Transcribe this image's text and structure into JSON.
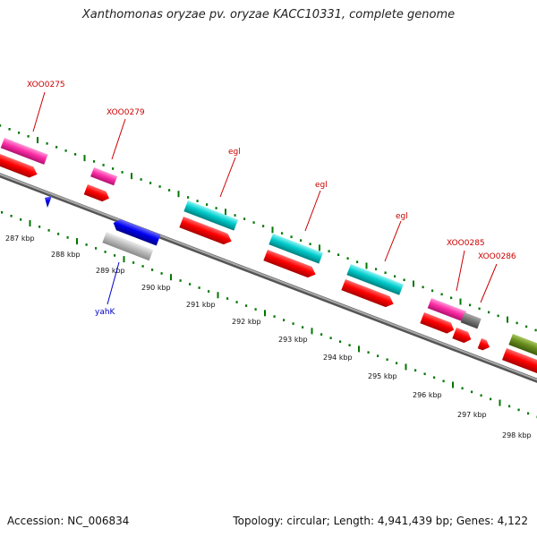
{
  "title": "Xanthomonas oryzae pv. oryzae KACC10331, complete genome",
  "footer": {
    "accession": "Accession: NC_006834",
    "summary": "Topology: circular; Length: 4,941,439 bp; Genes: 4,122"
  },
  "colors": {
    "gene": "#ff0000",
    "pink": "#ff2fa8",
    "cyan": "#00cccc",
    "blue": "#0000ee",
    "gray": "#b8b8b8",
    "darkgray": "#777777",
    "olive": "#6a8f1e",
    "tick": "#007700",
    "label_red": "#cc0000",
    "label_blue": "#0000cc"
  },
  "scale_labels": [
    "287 kbp",
    "288 kbp",
    "289 kbp",
    "290 kbp",
    "291 kbp",
    "292 kbp",
    "293 kbp",
    "294 kbp",
    "295 kbp",
    "296 kbp",
    "297 kbp",
    "298 kbp"
  ],
  "gene_labels": [
    {
      "id": "lbl-xoo0275",
      "text": "XOO0275",
      "color": "label_red"
    },
    {
      "id": "lbl-xoo0279",
      "text": "XOO0279",
      "color": "label_red"
    },
    {
      "id": "lbl-egl-1",
      "text": "egl",
      "color": "label_red"
    },
    {
      "id": "lbl-egl-2",
      "text": "egl",
      "color": "label_red"
    },
    {
      "id": "lbl-egl-3",
      "text": "egl",
      "color": "label_red"
    },
    {
      "id": "lbl-xoo0285",
      "text": "XOO0285",
      "color": "label_red"
    },
    {
      "id": "lbl-xoo0286",
      "text": "XOO0286",
      "color": "label_red"
    },
    {
      "id": "lbl-yahk",
      "text": "yahK",
      "color": "label_blue"
    }
  ]
}
